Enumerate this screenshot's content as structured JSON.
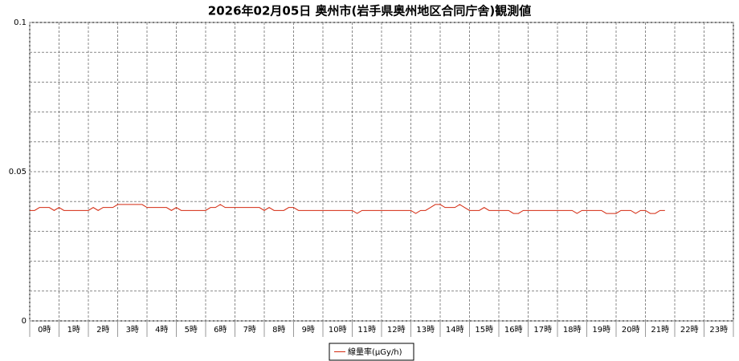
{
  "chart_data": {
    "type": "line",
    "title": "2026年02月05日 奥州市(岩手県奥州地区合同庁舎)観測値",
    "categories": [
      "0時",
      "1時",
      "2時",
      "3時",
      "4時",
      "5時",
      "6時",
      "7時",
      "8時",
      "9時",
      "10時",
      "11時",
      "12時",
      "13時",
      "14時",
      "15時",
      "16時",
      "17時",
      "18時",
      "19時",
      "20時",
      "21時",
      "22時",
      "23時"
    ],
    "xlim": [
      0,
      1440
    ],
    "xticks": [
      0,
      60,
      120,
      180,
      240,
      300,
      360,
      420,
      480,
      540,
      600,
      660,
      720,
      780,
      840,
      900,
      960,
      1020,
      1080,
      1140,
      1200,
      1260,
      1320,
      1380,
      1440
    ],
    "ylim": [
      0,
      0.1
    ],
    "yticks": [
      0,
      0.05,
      0.1
    ],
    "yminor_ticks": [
      0.01,
      0.02,
      0.03,
      0.04,
      0.06,
      0.07,
      0.08,
      0.09
    ],
    "grid": true,
    "legend": "bottom",
    "x": [
      0,
      10,
      20,
      30,
      40,
      50,
      60,
      70,
      80,
      90,
      100,
      110,
      120,
      130,
      140,
      150,
      160,
      170,
      180,
      190,
      200,
      210,
      220,
      230,
      240,
      250,
      260,
      270,
      280,
      290,
      300,
      310,
      320,
      330,
      340,
      350,
      360,
      370,
      380,
      390,
      400,
      410,
      420,
      430,
      440,
      450,
      460,
      470,
      480,
      490,
      500,
      510,
      520,
      530,
      540,
      550,
      560,
      570,
      580,
      590,
      600,
      610,
      620,
      630,
      640,
      650,
      660,
      670,
      680,
      690,
      700,
      710,
      720,
      730,
      740,
      750,
      760,
      770,
      780,
      790,
      800,
      810,
      820,
      830,
      840,
      850,
      860,
      870,
      880,
      890,
      900,
      910,
      920,
      930,
      940,
      950,
      960,
      970,
      980,
      990,
      1000,
      1010,
      1020,
      1030,
      1040,
      1050,
      1060,
      1070,
      1080,
      1090,
      1100,
      1110,
      1120,
      1130,
      1140,
      1150,
      1160,
      1170,
      1180,
      1190,
      1200,
      1210,
      1220,
      1230,
      1240,
      1250,
      1260,
      1270,
      1280,
      1290,
      1300
    ],
    "series": [
      {
        "name": "線量率(μGy/h)",
        "color": "#d42a10",
        "values": [
          0.037,
          0.037,
          0.038,
          0.038,
          0.038,
          0.037,
          0.038,
          0.037,
          0.037,
          0.037,
          0.037,
          0.037,
          0.037,
          0.038,
          0.037,
          0.038,
          0.038,
          0.038,
          0.039,
          0.039,
          0.039,
          0.039,
          0.039,
          0.039,
          0.038,
          0.038,
          0.038,
          0.038,
          0.038,
          0.037,
          0.038,
          0.037,
          0.037,
          0.037,
          0.037,
          0.037,
          0.037,
          0.038,
          0.038,
          0.039,
          0.038,
          0.038,
          0.038,
          0.038,
          0.038,
          0.038,
          0.038,
          0.038,
          0.037,
          0.038,
          0.037,
          0.037,
          0.037,
          0.038,
          0.038,
          0.037,
          0.037,
          0.037,
          0.037,
          0.037,
          0.037,
          0.037,
          0.037,
          0.037,
          0.037,
          0.037,
          0.037,
          0.036,
          0.037,
          0.037,
          0.037,
          0.037,
          0.037,
          0.037,
          0.037,
          0.037,
          0.037,
          0.037,
          0.037,
          0.036,
          0.037,
          0.037,
          0.038,
          0.039,
          0.039,
          0.038,
          0.038,
          0.038,
          0.039,
          0.038,
          0.037,
          0.037,
          0.037,
          0.038,
          0.037,
          0.037,
          0.037,
          0.037,
          0.037,
          0.036,
          0.036,
          0.037,
          0.037,
          0.037,
          0.037,
          0.037,
          0.037,
          0.037,
          0.037,
          0.037,
          0.037,
          0.037,
          0.036,
          0.037,
          0.037,
          0.037,
          0.037,
          0.037,
          0.036,
          0.036,
          0.036,
          0.037,
          0.037,
          0.037,
          0.036,
          0.037,
          0.037,
          0.036,
          0.036,
          0.037,
          0.037
        ]
      }
    ]
  }
}
